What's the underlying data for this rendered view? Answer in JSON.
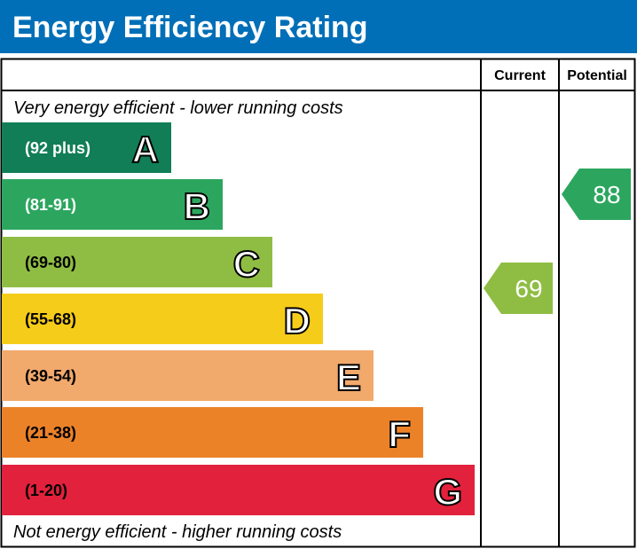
{
  "chart_data": {
    "type": "bar",
    "title": "Energy Efficiency Rating",
    "columns": [
      "Current",
      "Potential"
    ],
    "top_note": "Very energy efficient - lower running costs",
    "bottom_note": "Not energy efficient - higher running costs",
    "bands": [
      {
        "letter": "A",
        "range": "(92 plus)",
        "color": "#117e58"
      },
      {
        "letter": "B",
        "range": "(81-91)",
        "color": "#2ca65e"
      },
      {
        "letter": "C",
        "range": "(69-80)",
        "color": "#8fbd44"
      },
      {
        "letter": "D",
        "range": "(55-68)",
        "color": "#f6cc1a"
      },
      {
        "letter": "E",
        "range": "(39-54)",
        "color": "#f2a96c"
      },
      {
        "letter": "F",
        "range": "(21-38)",
        "color": "#ec8228"
      },
      {
        "letter": "G",
        "range": "(1-20)",
        "color": "#e2213c"
      }
    ],
    "current": {
      "value": 69,
      "band": "C",
      "color": "#8fbd44"
    },
    "potential": {
      "value": 88,
      "band": "B",
      "color": "#2ca65e"
    },
    "header_color": "#006fb7"
  }
}
